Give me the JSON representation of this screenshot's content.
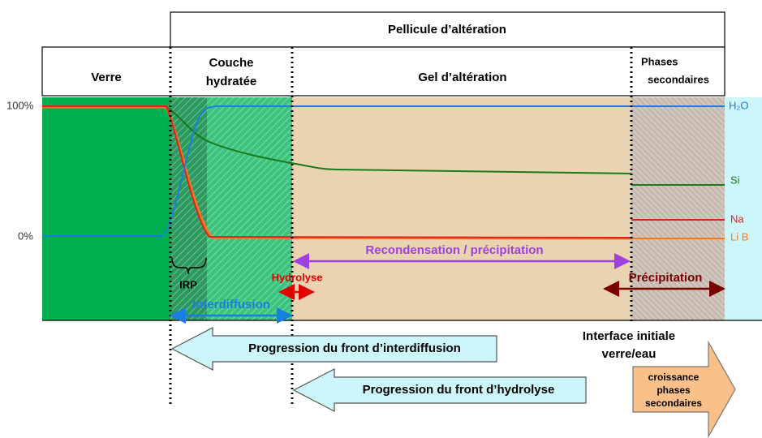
{
  "header": {
    "title": "Pellicule d’altération",
    "zones": [
      {
        "lines": [
          "Verre"
        ]
      },
      {
        "lines": [
          "Couche",
          "hydratée"
        ]
      },
      {
        "lines": [
          "Gel d’altération"
        ]
      },
      {
        "lines": [
          "Phases",
          "secondaires"
        ]
      }
    ]
  },
  "axis": {
    "top": "100%",
    "bottom": "0%"
  },
  "species": [
    "H₂O",
    "Si",
    "Na",
    "Li B"
  ],
  "annotations": {
    "irp": "IRP",
    "recondensation": "Recondensation / précipitation",
    "hydrolyse": "Hydrolyse",
    "interdiffusion": "Interdiffusion",
    "precipitation": "Précipitation",
    "interface": [
      "Interface initiale",
      "verre/eau"
    ]
  },
  "arrows": {
    "interdiffusion_front": "Progression du front d’interdiffusion",
    "hydrolyse_front": "Progression du front d’hydrolyse",
    "croissance": [
      "croissance",
      "phases",
      "secondaires"
    ]
  }
}
